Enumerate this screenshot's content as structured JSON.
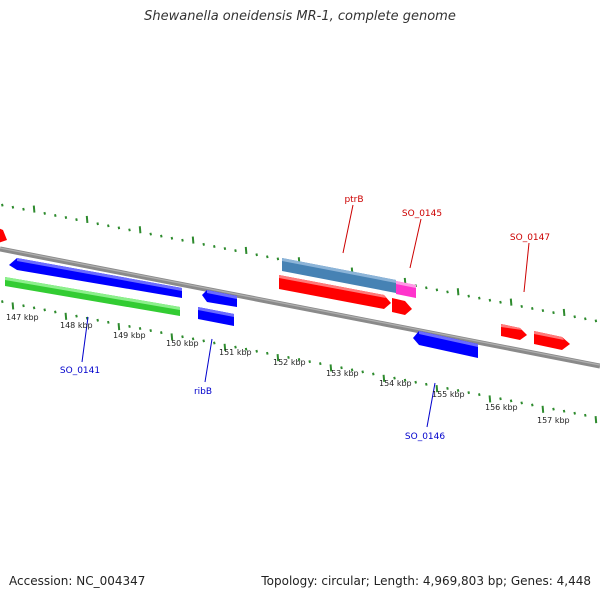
{
  "title": "Shewanella oneidensis MR-1, complete genome",
  "footer": {
    "accession": "Accession: NC_004347",
    "stats": "Topology: circular; Length: 4,969,803 bp; Genes: 4,448"
  },
  "colors": {
    "backbone": "#8a8a8a",
    "tick": "#2e8b2e",
    "forward_gene": "#ff0000",
    "reverse_gene": "#0000ff",
    "rna": "#33cc33",
    "other": "#4682b4",
    "pseudo": "#ff33cc"
  },
  "scale_labels": [
    "147 kbp",
    "148 kbp",
    "149 kbp",
    "150 kbp",
    "151 kbp",
    "152 kbp",
    "153 kbp",
    "154 kbp",
    "155 kbp",
    "156 kbp",
    "157 kbp"
  ],
  "gene_labels": [
    {
      "text": "ptrB",
      "color": "#cc0000"
    },
    {
      "text": "SO_0145",
      "color": "#cc0000"
    },
    {
      "text": "SO_0147",
      "color": "#cc0000"
    },
    {
      "text": "SO_0141",
      "color": "#0000cc"
    },
    {
      "text": "ribB",
      "color": "#0000cc"
    },
    {
      "text": "SO_0146",
      "color": "#0000cc"
    }
  ]
}
